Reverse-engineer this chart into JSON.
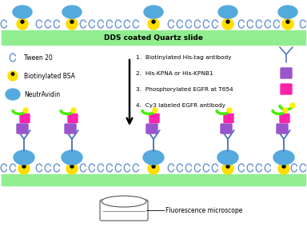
{
  "bg_color": "#ffffff",
  "slide_color": "#90ee90",
  "tween_color": "#5588cc",
  "bsa_color": "#ffdd00",
  "neutr_color": "#55aadd",
  "antibody_color": "#5577bb",
  "kpna_color": "#9955cc",
  "egfr_color": "#ff22aa",
  "cy3_green": "#44ee00",
  "cy3_yellow": "#ffee00",
  "slide_label": "DDS coated Quartz slide",
  "steps": [
    "1.  Biotinylated His-tag antibody",
    "2.  His-KPNA or His-KPNB1",
    "3.  Phosphorylated EGFR at T654",
    "4.  Cy3 labeled EGFR antibody"
  ],
  "legend_labels": [
    "Tween 20",
    "Biotinylated BSA",
    "NeutrAvidin"
  ],
  "microscope_label": "Fluorescence microscope"
}
